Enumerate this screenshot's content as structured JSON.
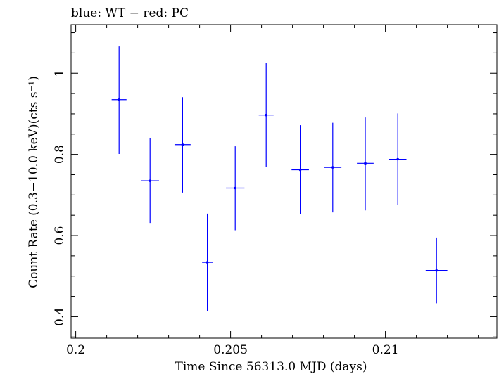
{
  "chart_data": {
    "type": "scatter",
    "title": "blue: WT − red: PC",
    "xlabel": "Time Since 56313.0 MJD (days)",
    "ylabel": "Count Rate (0.3−10.0 keV)(cts s⁻¹)",
    "xlim": [
      0.19985,
      0.2136
    ],
    "ylim": [
      0.347,
      1.12
    ],
    "xticks": [
      0.2,
      0.205,
      0.21
    ],
    "xtick_labels": [
      "0.2",
      "0.205",
      "0.21"
    ],
    "yticks": [
      0.4,
      0.6,
      0.8,
      1.0
    ],
    "ytick_labels": [
      "0.4",
      "0.6",
      "0.8",
      "1"
    ],
    "grid": false,
    "series": [
      {
        "name": "WT",
        "color": "#0000ff",
        "points": [
          {
            "x": 0.2014,
            "y": 0.935,
            "xerr": 0.00024,
            "yerr_lo": 0.134,
            "yerr_hi": 0.131
          },
          {
            "x": 0.2024,
            "y": 0.735,
            "xerr": 0.00029,
            "yerr_lo": 0.104,
            "yerr_hi": 0.106
          },
          {
            "x": 0.20345,
            "y": 0.824,
            "xerr": 0.00026,
            "yerr_lo": 0.118,
            "yerr_hi": 0.117
          },
          {
            "x": 0.20425,
            "y": 0.534,
            "xerr": 0.00017,
            "yerr_lo": 0.12,
            "yerr_hi": 0.12
          },
          {
            "x": 0.20515,
            "y": 0.717,
            "xerr": 0.0003,
            "yerr_lo": 0.104,
            "yerr_hi": 0.103
          },
          {
            "x": 0.20615,
            "y": 0.897,
            "xerr": 0.00024,
            "yerr_lo": 0.128,
            "yerr_hi": 0.128
          },
          {
            "x": 0.20725,
            "y": 0.762,
            "xerr": 0.00028,
            "yerr_lo": 0.109,
            "yerr_hi": 0.11
          },
          {
            "x": 0.2083,
            "y": 0.768,
            "xerr": 0.00028,
            "yerr_lo": 0.111,
            "yerr_hi": 0.11
          },
          {
            "x": 0.20935,
            "y": 0.778,
            "xerr": 0.00027,
            "yerr_lo": 0.116,
            "yerr_hi": 0.113
          },
          {
            "x": 0.2104,
            "y": 0.788,
            "xerr": 0.00028,
            "yerr_lo": 0.112,
            "yerr_hi": 0.113
          },
          {
            "x": 0.21165,
            "y": 0.514,
            "xerr": 0.00035,
            "yerr_lo": 0.081,
            "yerr_hi": 0.081
          }
        ]
      }
    ]
  }
}
